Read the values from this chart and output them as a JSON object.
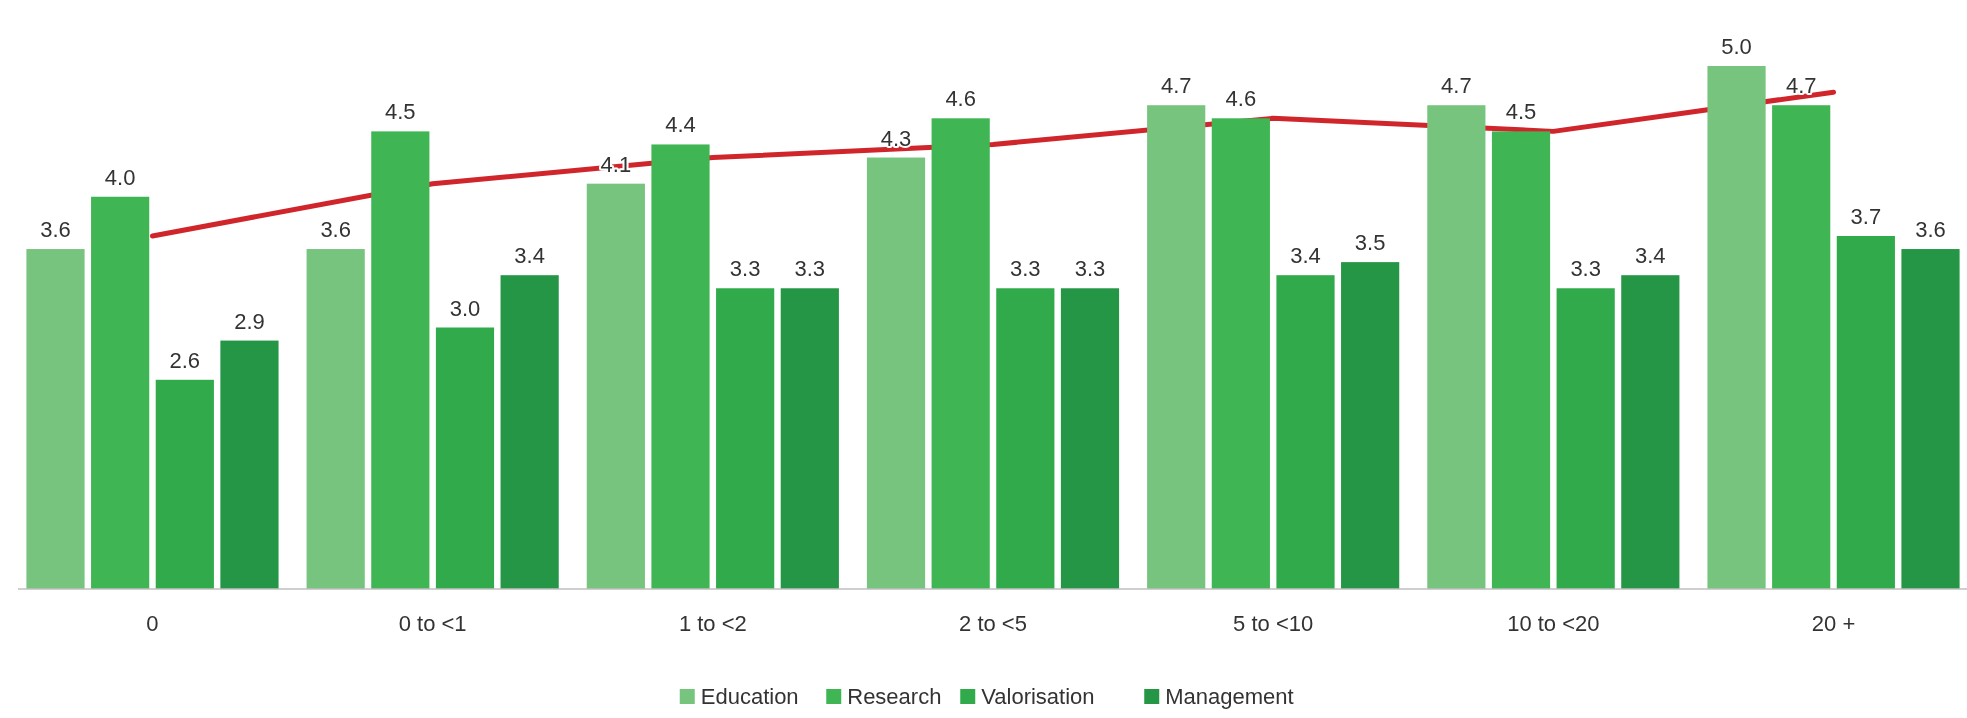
{
  "chart_data": {
    "type": "bar",
    "categories": [
      "0",
      "0 to <1",
      "1 to <2",
      "2 to <5",
      "5 to <10",
      "10 to <20",
      "20 +"
    ],
    "ylim": [
      1,
      5.0
    ],
    "tick_labels": "x",
    "legend": "bottom",
    "series": [
      {
        "name": "Education",
        "color": "#77c47f",
        "values": [
          3.6,
          3.6,
          4.1,
          4.3,
          4.7,
          4.7,
          5.0
        ],
        "value_labels": [
          "3.6",
          "3.6",
          "4.1",
          "4.3",
          "4.7",
          "4.7",
          "5.0"
        ]
      },
      {
        "name": "Research",
        "color": "#3fb653",
        "values": [
          4.0,
          4.5,
          4.4,
          4.6,
          4.6,
          4.5,
          4.7
        ],
        "value_labels": [
          "4.0",
          "4.5",
          "4.4",
          "4.6",
          "4.6",
          "4.5",
          "4.7"
        ]
      },
      {
        "name": "Valorisation",
        "color": "#31aa4b",
        "values": [
          2.6,
          3.0,
          3.3,
          3.3,
          3.4,
          3.3,
          3.7
        ],
        "value_labels": [
          "2.6",
          "3.0",
          "3.3",
          "3.3",
          "3.4",
          "3.3",
          "3.7"
        ]
      },
      {
        "name": "Management",
        "color": "#249646",
        "values": [
          2.9,
          3.4,
          3.3,
          3.3,
          3.5,
          3.4,
          3.6
        ],
        "value_labels": [
          "2.9",
          "3.4",
          "3.3",
          "3.3",
          "3.5",
          "3.4",
          "3.6"
        ]
      },
      {
        "type": "line",
        "color": "#d0262b",
        "values": [
          3.7,
          4.1,
          4.3,
          4.4,
          4.6,
          4.5,
          4.8
        ]
      }
    ]
  }
}
